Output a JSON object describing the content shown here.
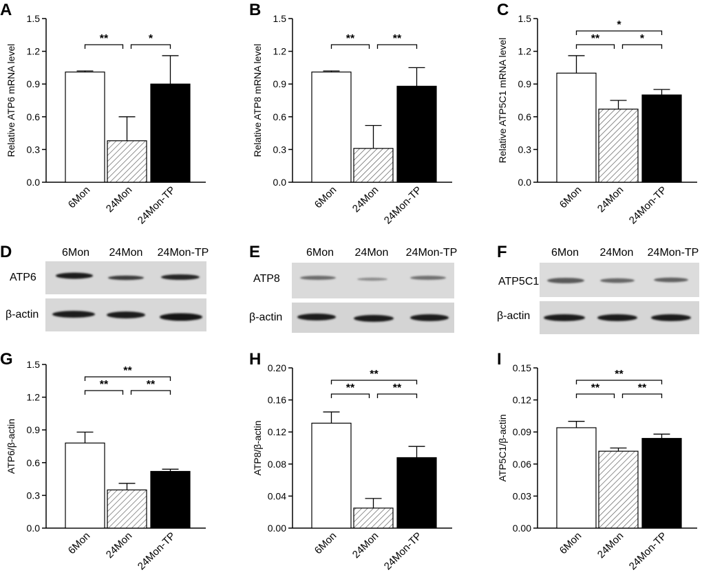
{
  "panels": {
    "A": "A",
    "B": "B",
    "C": "C",
    "D": "D",
    "E": "E",
    "F": "F",
    "G": "G",
    "H": "H",
    "I": "I"
  },
  "colors": {
    "bar_6mon": "#ffffff",
    "bar_24mon": "hatched",
    "bar_24montp": "#000000",
    "blot_bg": "#d8d8d8",
    "band": "#1a1a1a"
  },
  "blots": [
    {
      "panel": "D",
      "lanes": [
        "6Mon",
        "24Mon",
        "24Mon-TP"
      ],
      "rows": [
        "ATP6",
        "β-actin"
      ]
    },
    {
      "panel": "E",
      "lanes": [
        "6Mon",
        "24Mon",
        "24Mon-TP"
      ],
      "rows": [
        "ATP8",
        "β-actin"
      ]
    },
    {
      "panel": "F",
      "lanes": [
        "6Mon",
        "24Mon",
        "24Mon-TP"
      ],
      "rows": [
        "ATP5C1",
        "β-actin"
      ]
    }
  ],
  "chart_data": [
    {
      "panel": "A",
      "type": "bar",
      "categories": [
        "6Mon",
        "24Mon",
        "24Mon-TP"
      ],
      "values": [
        1.01,
        0.38,
        0.9
      ],
      "errors": [
        0.01,
        0.22,
        0.26
      ],
      "ylabel": "Relative ATP6 mRNA level",
      "ylim": [
        0,
        1.5
      ],
      "yticks": [
        "0.0",
        "0.3",
        "0.6",
        "0.9",
        "1.2",
        "1.5"
      ],
      "significance": [
        {
          "from": 0,
          "to": 1,
          "label": "**"
        },
        {
          "from": 1,
          "to": 2,
          "label": "*"
        }
      ]
    },
    {
      "panel": "B",
      "type": "bar",
      "categories": [
        "6Mon",
        "24Mon",
        "24Mon-TP"
      ],
      "values": [
        1.01,
        0.31,
        0.88
      ],
      "errors": [
        0.01,
        0.21,
        0.17
      ],
      "ylabel": "Relative ATP8 mRNA level",
      "ylim": [
        0,
        1.5
      ],
      "yticks": [
        "0.0",
        "0.3",
        "0.6",
        "0.9",
        "1.2",
        "1.5"
      ],
      "significance": [
        {
          "from": 0,
          "to": 1,
          "label": "**"
        },
        {
          "from": 1,
          "to": 2,
          "label": "**"
        }
      ]
    },
    {
      "panel": "C",
      "type": "bar",
      "categories": [
        "6Mon",
        "24Mon",
        "24Mon-TP"
      ],
      "values": [
        1.0,
        0.67,
        0.8
      ],
      "errors": [
        0.16,
        0.08,
        0.05
      ],
      "ylabel": "Relative ATP5C1 mRNA level",
      "ylim": [
        0,
        1.5
      ],
      "yticks": [
        "0.0",
        "0.3",
        "0.6",
        "0.9",
        "1.2",
        "1.5"
      ],
      "significance": [
        {
          "from": 0,
          "to": 1,
          "label": "**"
        },
        {
          "from": 1,
          "to": 2,
          "label": "*"
        },
        {
          "from": 0,
          "to": 2,
          "label": "*"
        }
      ]
    },
    {
      "panel": "G",
      "type": "bar",
      "categories": [
        "6Mon",
        "24Mon",
        "24Mon-TP"
      ],
      "values": [
        0.78,
        0.35,
        0.52
      ],
      "errors": [
        0.1,
        0.06,
        0.02
      ],
      "ylabel": "ATP6/β-actin",
      "ylim": [
        0,
        1.5
      ],
      "yticks": [
        "0.0",
        "0.3",
        "0.6",
        "0.9",
        "1.2",
        "1.5"
      ],
      "significance": [
        {
          "from": 0,
          "to": 1,
          "label": "**"
        },
        {
          "from": 1,
          "to": 2,
          "label": "**"
        },
        {
          "from": 0,
          "to": 2,
          "label": "**"
        }
      ]
    },
    {
      "panel": "H",
      "type": "bar",
      "categories": [
        "6Mon",
        "24Mon",
        "24Mon-TP"
      ],
      "values": [
        0.131,
        0.025,
        0.088
      ],
      "errors": [
        0.014,
        0.012,
        0.014
      ],
      "ylabel": "ATP8/β-actin",
      "ylim": [
        0,
        0.2
      ],
      "yticks": [
        "0.00",
        "0.04",
        "0.08",
        "0.12",
        "0.16",
        "0.20"
      ],
      "significance": [
        {
          "from": 0,
          "to": 1,
          "label": "**"
        },
        {
          "from": 1,
          "to": 2,
          "label": "**"
        },
        {
          "from": 0,
          "to": 2,
          "label": "**"
        }
      ]
    },
    {
      "panel": "I",
      "type": "bar",
      "categories": [
        "6Mon",
        "24Mon",
        "24Mon-TP"
      ],
      "values": [
        0.094,
        0.072,
        0.084
      ],
      "errors": [
        0.006,
        0.003,
        0.004
      ],
      "ylabel": "ATP5C1/β-actin",
      "ylim": [
        0,
        0.15
      ],
      "yticks": [
        "0.00",
        "0.03",
        "0.06",
        "0.09",
        "0.12",
        "0.15"
      ],
      "significance": [
        {
          "from": 0,
          "to": 1,
          "label": "**"
        },
        {
          "from": 1,
          "to": 2,
          "label": "**"
        },
        {
          "from": 0,
          "to": 2,
          "label": "**"
        }
      ]
    }
  ]
}
